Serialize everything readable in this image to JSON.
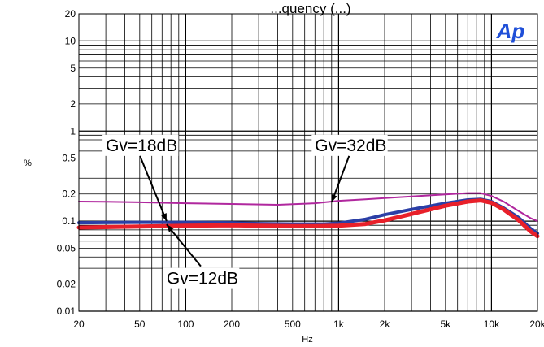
{
  "chart_data": {
    "type": "line",
    "title": "...quency (...)",
    "xlabel": "Hz",
    "ylabel": "%",
    "x_scale": "log",
    "y_scale": "log",
    "xlim": [
      20,
      20000
    ],
    "ylim": [
      0.01,
      20
    ],
    "x_ticks": [
      {
        "value": 20,
        "label": "20"
      },
      {
        "value": 50,
        "label": "50"
      },
      {
        "value": 100,
        "label": "100"
      },
      {
        "value": 200,
        "label": "200"
      },
      {
        "value": 500,
        "label": "500"
      },
      {
        "value": 1000,
        "label": "1k"
      },
      {
        "value": 2000,
        "label": "2k"
      },
      {
        "value": 5000,
        "label": "5k"
      },
      {
        "value": 10000,
        "label": "10k"
      },
      {
        "value": 20000,
        "label": "20k"
      }
    ],
    "y_ticks": [
      {
        "value": 0.01,
        "label": "0.01"
      },
      {
        "value": 0.02,
        "label": "0.02"
      },
      {
        "value": 0.05,
        "label": "0.05"
      },
      {
        "value": 0.1,
        "label": "0.1"
      },
      {
        "value": 0.2,
        "label": "0.2"
      },
      {
        "value": 0.5,
        "label": "0.5"
      },
      {
        "value": 1,
        "label": "1"
      },
      {
        "value": 2,
        "label": "2"
      },
      {
        "value": 5,
        "label": "5"
      },
      {
        "value": 10,
        "label": "10"
      },
      {
        "value": 20,
        "label": "20"
      }
    ],
    "grid": true,
    "logo_text": "Ap",
    "series": [
      {
        "color": "#b0279e",
        "stroke": 2,
        "points": [
          [
            20,
            0.165
          ],
          [
            30,
            0.164
          ],
          [
            50,
            0.162
          ],
          [
            100,
            0.158
          ],
          [
            200,
            0.155
          ],
          [
            400,
            0.152
          ],
          [
            700,
            0.158
          ],
          [
            1000,
            0.168
          ],
          [
            1500,
            0.175
          ],
          [
            2000,
            0.18
          ],
          [
            3000,
            0.188
          ],
          [
            5000,
            0.198
          ],
          [
            7000,
            0.205
          ],
          [
            8500,
            0.205
          ],
          [
            10000,
            0.19
          ],
          [
            12000,
            0.165
          ],
          [
            15000,
            0.13
          ],
          [
            18000,
            0.108
          ],
          [
            20000,
            0.1
          ]
        ]
      },
      {
        "color": "#2b3fa6",
        "stroke": 4,
        "points": [
          [
            20,
            0.096
          ],
          [
            50,
            0.097
          ],
          [
            100,
            0.097
          ],
          [
            200,
            0.096
          ],
          [
            300,
            0.094
          ],
          [
            500,
            0.093
          ],
          [
            800,
            0.093
          ],
          [
            1000,
            0.095
          ],
          [
            1500,
            0.105
          ],
          [
            2000,
            0.118
          ],
          [
            3000,
            0.135
          ],
          [
            5000,
            0.158
          ],
          [
            7000,
            0.172
          ],
          [
            8500,
            0.175
          ],
          [
            10000,
            0.165
          ],
          [
            12000,
            0.14
          ],
          [
            15000,
            0.11
          ],
          [
            18000,
            0.083
          ],
          [
            20000,
            0.073
          ]
        ]
      },
      {
        "color": "#e8202a",
        "stroke": 5,
        "points": [
          [
            20,
            0.085
          ],
          [
            50,
            0.087
          ],
          [
            100,
            0.089
          ],
          [
            200,
            0.09
          ],
          [
            300,
            0.089
          ],
          [
            500,
            0.088
          ],
          [
            700,
            0.088
          ],
          [
            1000,
            0.089
          ],
          [
            1500,
            0.093
          ],
          [
            2000,
            0.102
          ],
          [
            3000,
            0.12
          ],
          [
            5000,
            0.148
          ],
          [
            7000,
            0.165
          ],
          [
            8500,
            0.17
          ],
          [
            10000,
            0.16
          ],
          [
            12000,
            0.135
          ],
          [
            15000,
            0.103
          ],
          [
            18000,
            0.077
          ],
          [
            20000,
            0.068
          ]
        ]
      }
    ],
    "annotations": [
      {
        "text": "Gv=18dB",
        "label_x": 30,
        "label_y": 0.6,
        "arrow_to": [
          75,
          0.1
        ]
      },
      {
        "text": "Gv=32dB",
        "label_x": 700,
        "label_y": 0.6,
        "arrow_to": [
          900,
          0.162
        ]
      },
      {
        "text": "Gv=12dB",
        "label_x": 75,
        "label_y": 0.02,
        "arrow_to": [
          75,
          0.092
        ]
      }
    ]
  }
}
